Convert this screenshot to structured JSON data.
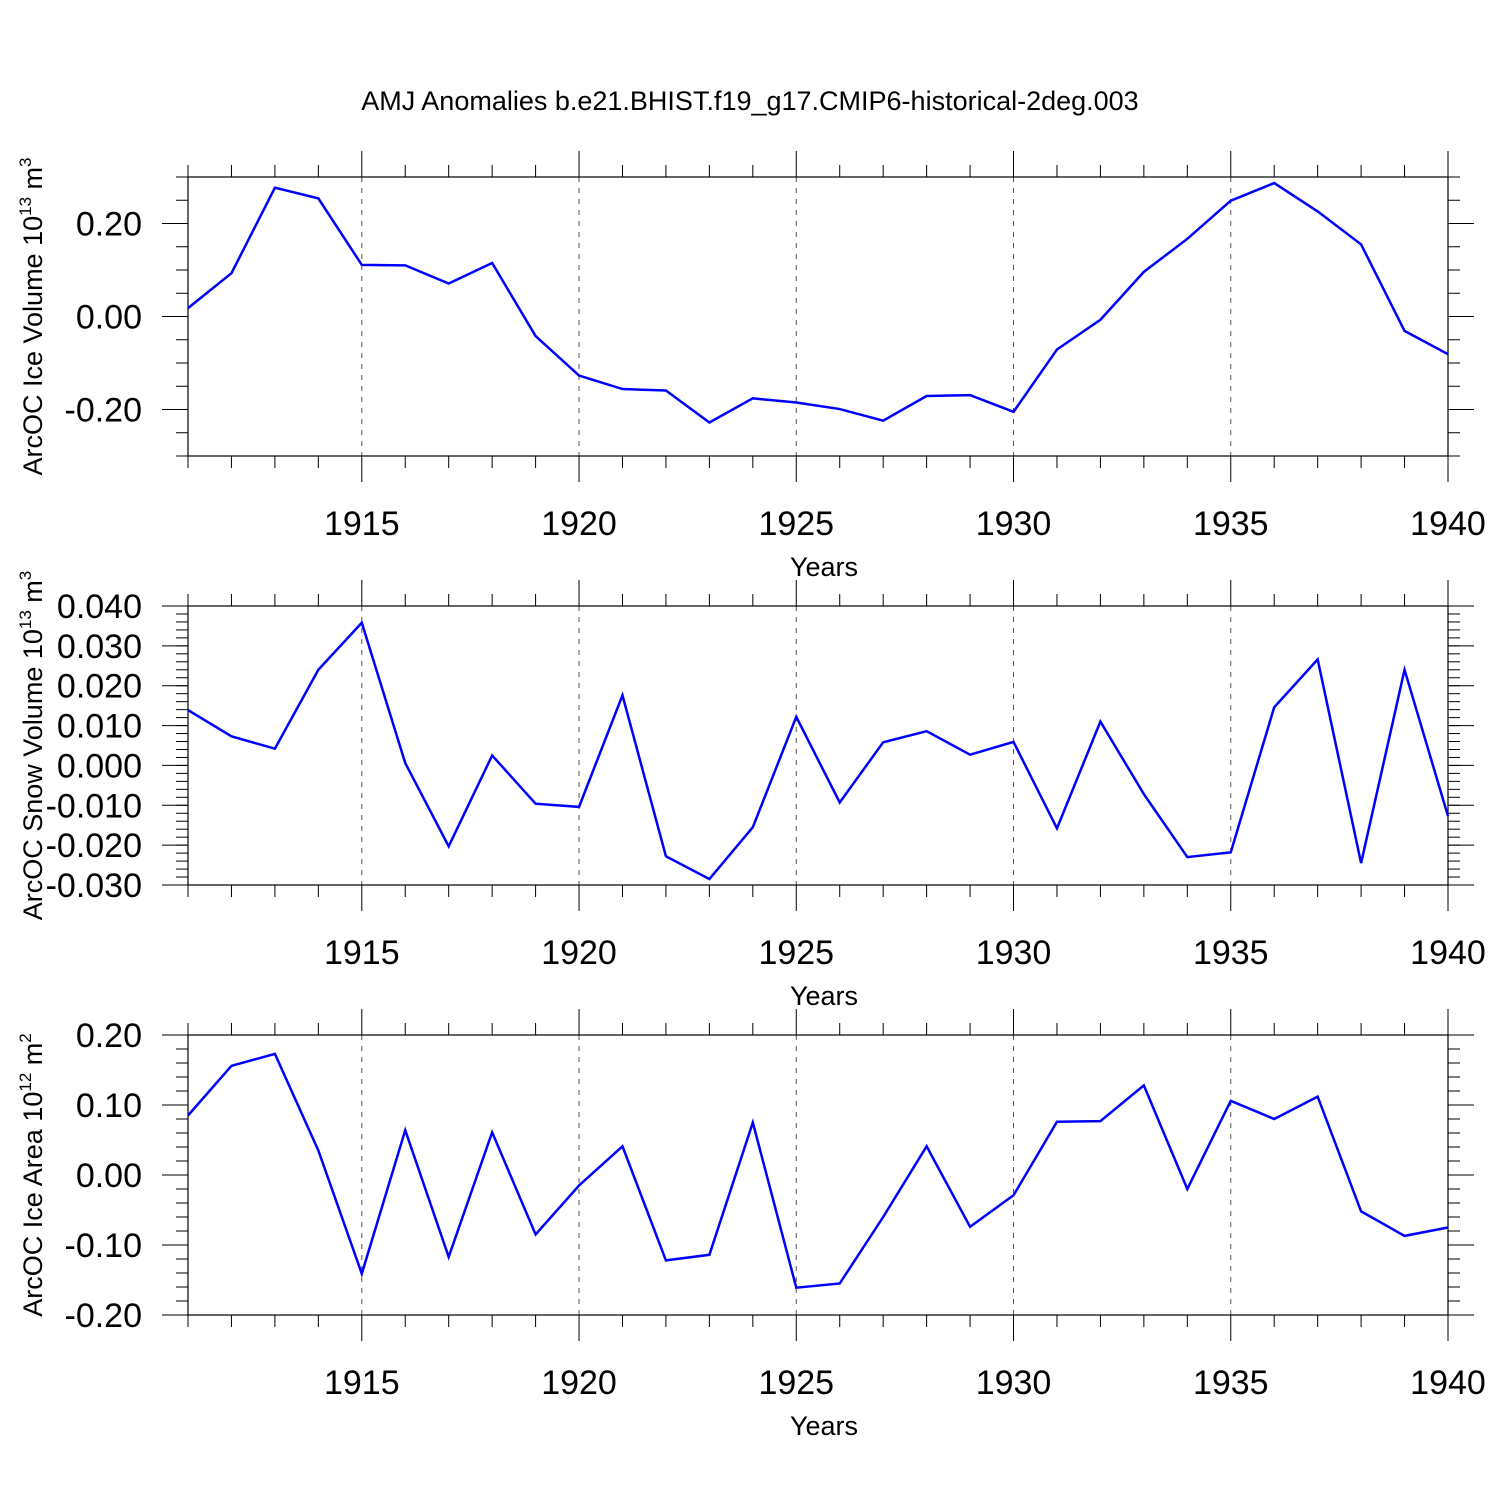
{
  "title": "AMJ Anomalies b.e21.BHIST.f19_g17.CMIP6-historical-2deg.003",
  "chart_data": [
    {
      "type": "line",
      "title": "",
      "xlabel": "Years",
      "ylabel": "ArcOC Ice Volume 10",
      "ylabel_exp": "13",
      "ylabel_unit": "m",
      "ylabel_unit_exp": "3",
      "xlim": [
        1911,
        1940
      ],
      "ylim": [
        -0.3,
        0.3
      ],
      "yticks": [
        -0.2,
        0.0,
        0.2
      ],
      "ytick_labels": [
        "-0.20",
        "0.00",
        "0.20"
      ],
      "yminor_step": 0.05,
      "xticks": [
        1915,
        1920,
        1925,
        1930,
        1935,
        1940
      ],
      "xtick_labels": [
        "1915",
        "1920",
        "1925",
        "1930",
        "1935",
        "1940"
      ],
      "grid": "vertical-dashed",
      "color": "#0000ff",
      "x": [
        1911,
        1912,
        1913,
        1914,
        1915,
        1916,
        1917,
        1918,
        1919,
        1920,
        1921,
        1922,
        1923,
        1924,
        1925,
        1926,
        1927,
        1928,
        1929,
        1930,
        1931,
        1932,
        1933,
        1934,
        1935,
        1936,
        1937,
        1938,
        1939,
        1940
      ],
      "values": [
        0.018,
        0.093,
        0.277,
        0.254,
        0.111,
        0.11,
        0.071,
        0.115,
        -0.042,
        -0.127,
        -0.156,
        -0.159,
        -0.228,
        -0.176,
        -0.185,
        -0.199,
        -0.224,
        -0.171,
        -0.169,
        -0.205,
        -0.071,
        -0.007,
        0.096,
        0.167,
        0.249,
        0.287,
        0.226,
        0.155,
        -0.031,
        -0.081
      ]
    },
    {
      "type": "line",
      "title": "",
      "xlabel": "Years",
      "ylabel": "ArcOC Snow Volume 10",
      "ylabel_exp": "13",
      "ylabel_unit": "m",
      "ylabel_unit_exp": "3",
      "xlim": [
        1911,
        1940
      ],
      "ylim": [
        -0.03,
        0.04
      ],
      "yticks": [
        -0.03,
        -0.02,
        -0.01,
        0.0,
        0.01,
        0.02,
        0.03,
        0.04
      ],
      "ytick_labels": [
        "-0.030",
        "-0.020",
        "-0.010",
        "0.000",
        "0.010",
        "0.020",
        "0.030",
        "0.040"
      ],
      "yminor_step": 0.002,
      "xticks": [
        1915,
        1920,
        1925,
        1930,
        1935,
        1940
      ],
      "xtick_labels": [
        "1915",
        "1920",
        "1925",
        "1930",
        "1935",
        "1940"
      ],
      "grid": "vertical-dashed",
      "color": "#0000ff",
      "x": [
        1911,
        1912,
        1913,
        1914,
        1915,
        1916,
        1917,
        1918,
        1919,
        1920,
        1921,
        1922,
        1923,
        1924,
        1925,
        1926,
        1927,
        1928,
        1929,
        1930,
        1931,
        1932,
        1933,
        1934,
        1935,
        1936,
        1937,
        1938,
        1939,
        1940
      ],
      "values": [
        0.0139,
        0.0073,
        0.0042,
        0.024,
        0.0358,
        0.0006,
        -0.0203,
        0.0025,
        -0.0096,
        -0.0104,
        0.0176,
        -0.0228,
        -0.0285,
        -0.0155,
        0.0122,
        -0.0093,
        0.0058,
        0.0086,
        0.0027,
        0.0059,
        -0.0158,
        0.011,
        -0.0072,
        -0.023,
        -0.0218,
        0.0146,
        0.0266,
        -0.0245,
        0.024,
        -0.0127
      ]
    },
    {
      "type": "line",
      "title": "",
      "xlabel": "Years",
      "ylabel": "ArcOC Ice Area 10",
      "ylabel_exp": "12",
      "ylabel_unit": "m",
      "ylabel_unit_exp": "2",
      "xlim": [
        1911,
        1940
      ],
      "ylim": [
        -0.2,
        0.2
      ],
      "yticks": [
        -0.2,
        -0.1,
        0.0,
        0.1,
        0.2
      ],
      "ytick_labels": [
        "-0.20",
        "-0.10",
        "0.00",
        "0.10",
        "0.20"
      ],
      "yminor_step": 0.02,
      "xticks": [
        1915,
        1920,
        1925,
        1930,
        1935,
        1940
      ],
      "xtick_labels": [
        "1915",
        "1920",
        "1925",
        "1930",
        "1935",
        "1940"
      ],
      "grid": "vertical-dashed",
      "color": "#0000ff",
      "x": [
        1911,
        1912,
        1913,
        1914,
        1915,
        1916,
        1917,
        1918,
        1919,
        1920,
        1921,
        1922,
        1923,
        1924,
        1925,
        1926,
        1927,
        1928,
        1929,
        1930,
        1931,
        1932,
        1933,
        1934,
        1935,
        1936,
        1937,
        1938,
        1939,
        1940
      ],
      "values": [
        0.085,
        0.156,
        0.173,
        0.035,
        -0.141,
        0.064,
        -0.117,
        0.061,
        -0.085,
        -0.015,
        0.041,
        -0.122,
        -0.114,
        0.075,
        -0.161,
        -0.155,
        -0.06,
        0.041,
        -0.074,
        -0.029,
        0.076,
        0.077,
        0.128,
        -0.02,
        0.106,
        0.08,
        0.112,
        -0.052,
        -0.087,
        -0.075
      ]
    }
  ]
}
